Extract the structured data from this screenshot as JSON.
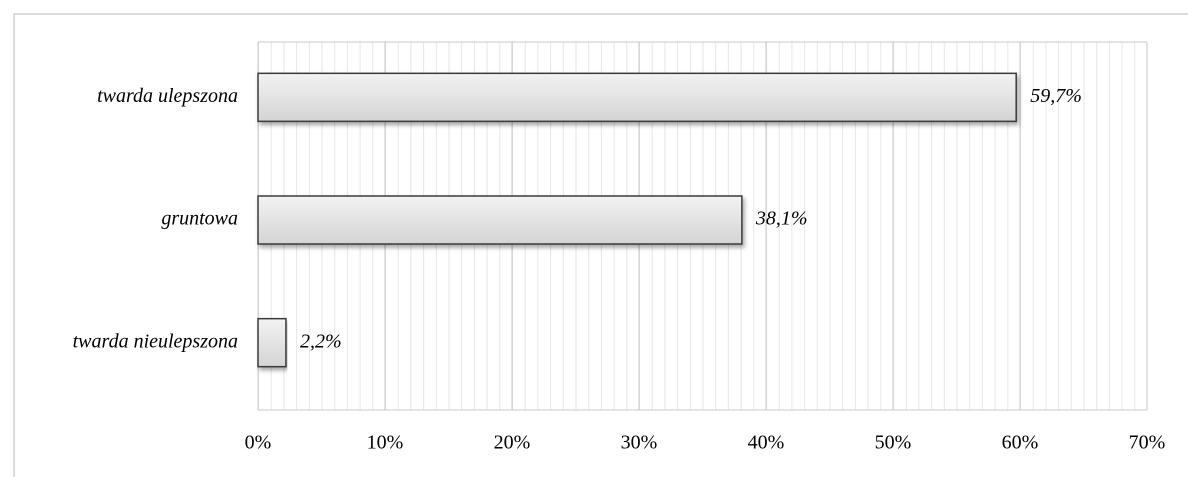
{
  "chart_data": {
    "type": "bar",
    "orientation": "horizontal",
    "categories": [
      "twarda ulepszona",
      "gruntowa",
      "twarda nieulepszona"
    ],
    "values": [
      59.7,
      38.1,
      2.2
    ],
    "value_labels": [
      "59,7%",
      "38,1%",
      "2,2%"
    ],
    "color": "#e2e2e2",
    "xlim": [
      0,
      70
    ],
    "xticks": [
      {
        "value": 0,
        "label": "0%"
      },
      {
        "value": 10,
        "label": "10%"
      },
      {
        "value": 20,
        "label": "20%"
      },
      {
        "value": 30,
        "label": "30%"
      },
      {
        "value": 40,
        "label": "40%"
      },
      {
        "value": 50,
        "label": "50%"
      },
      {
        "value": 60,
        "label": "60%"
      },
      {
        "value": 70,
        "label": "70%"
      }
    ],
    "grid": true
  }
}
